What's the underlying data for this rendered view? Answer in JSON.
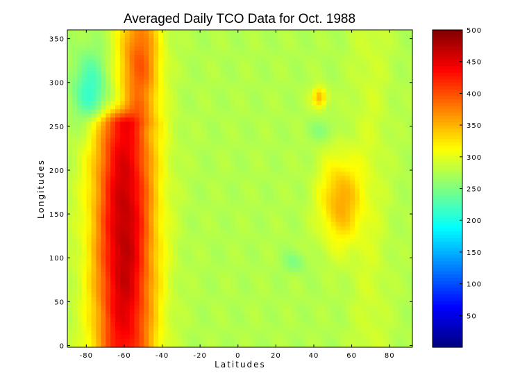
{
  "chart_data": {
    "type": "heatmap",
    "title": "Averaged Daily TCO Data for Oct. 1988",
    "xlabel": "Latitudes",
    "ylabel": "Longitudes",
    "xlim": [
      -90,
      92
    ],
    "ylim": [
      -2,
      360
    ],
    "x_ticks": [
      -80,
      -60,
      -40,
      -20,
      0,
      20,
      40,
      60,
      80
    ],
    "y_ticks": [
      0,
      50,
      100,
      150,
      200,
      250,
      300,
      350
    ],
    "colorbar": {
      "colormap": "jet",
      "range": [
        0,
        500
      ],
      "ticks": [
        50,
        100,
        150,
        200,
        250,
        300,
        350,
        400,
        450,
        500
      ]
    },
    "background_value": 275,
    "features": [
      {
        "kind": "ridge",
        "lat_center": -60,
        "lon_range": [
          0,
          250
        ],
        "peak_value": 470,
        "lat_width": 16
      },
      {
        "kind": "ridge",
        "lat_center": -52,
        "lon_range": [
          280,
          360
        ],
        "peak_value": 395,
        "lat_width": 11
      },
      {
        "kind": "blob",
        "lat_center": -78,
        "lon_center": 290,
        "lat_radius": 9,
        "lon_radius": 45,
        "value": 215
      },
      {
        "kind": "blob",
        "lat_center": 54,
        "lon_center": 165,
        "lat_radius": 11,
        "lon_radius": 50,
        "value": 355
      },
      {
        "kind": "blob",
        "lat_center": 43,
        "lon_center": 283,
        "lat_radius": 4,
        "lon_radius": 12,
        "value": 350
      },
      {
        "kind": "blob",
        "lat_center": 30,
        "lon_center": 95,
        "lat_radius": 6,
        "lon_radius": 12,
        "value": 250
      },
      {
        "kind": "blob",
        "lat_center": 45,
        "lon_center": 245,
        "lat_radius": 8,
        "lon_radius": 12,
        "value": 255
      },
      {
        "kind": "band",
        "lat_center": 70,
        "lon_range": [
          0,
          360
        ],
        "lat_width": 10,
        "value": 300
      }
    ]
  }
}
